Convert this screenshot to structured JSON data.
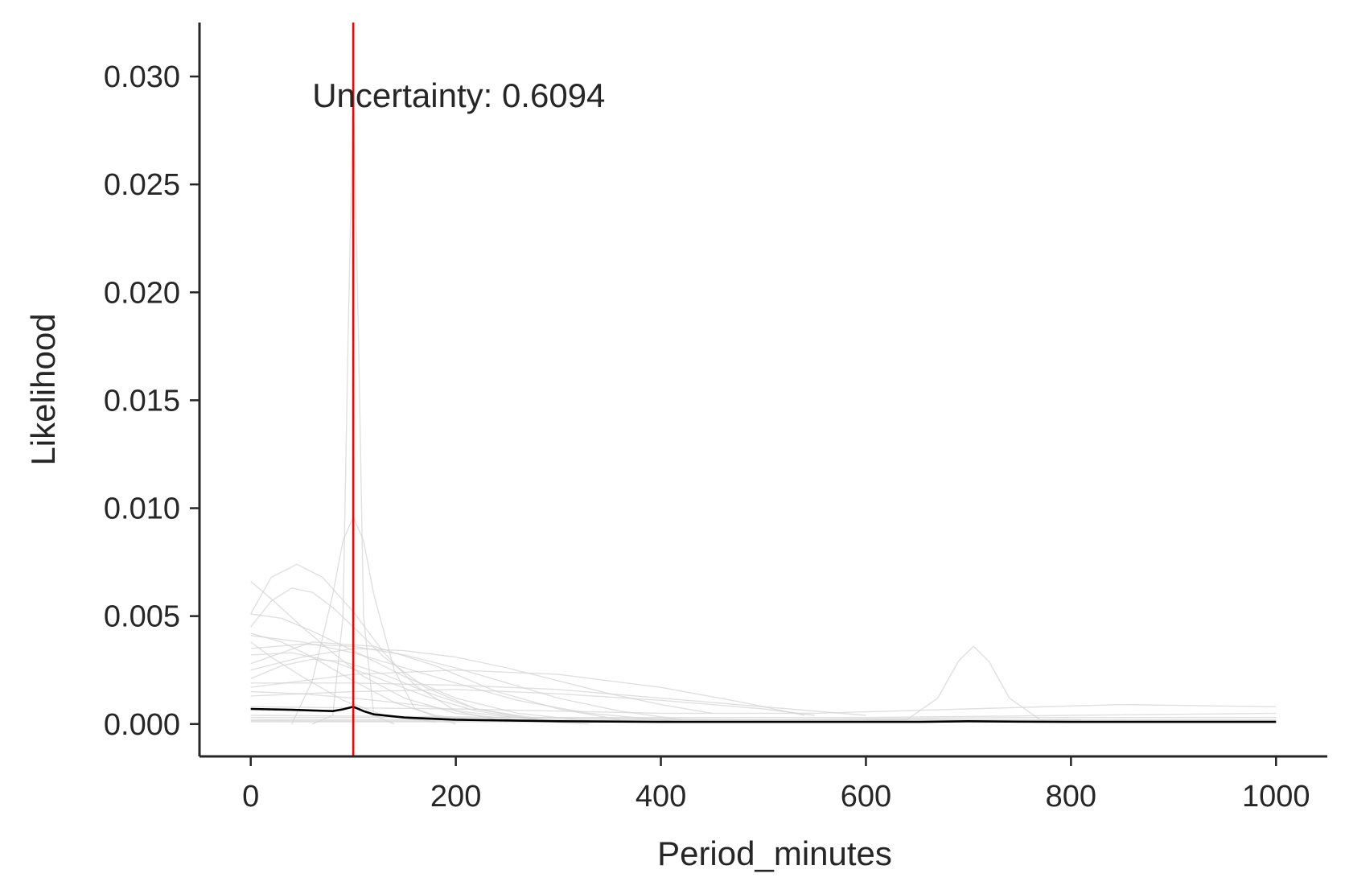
{
  "chart_data": {
    "type": "line",
    "title": "",
    "xlabel": "Period_minutes",
    "ylabel": "Likelihood",
    "xlim": [
      -50,
      1050
    ],
    "ylim": [
      -0.0015,
      0.0325
    ],
    "x_ticks": [
      0,
      200,
      400,
      600,
      800,
      1000
    ],
    "x_tick_labels": [
      "0",
      "200",
      "400",
      "600",
      "800",
      "1000"
    ],
    "y_ticks": [
      0.0,
      0.005,
      0.01,
      0.015,
      0.02,
      0.025,
      0.03
    ],
    "y_tick_labels": [
      "0.000",
      "0.005",
      "0.010",
      "0.015",
      "0.020",
      "0.025",
      "0.030"
    ],
    "grid": false,
    "annotation": {
      "text": "Uncertainty: 0.6094",
      "x": 60,
      "y": 0.0291
    },
    "vline": {
      "x": 100,
      "color": "#ff0000"
    },
    "colors": {
      "individual": "#d3d3d3",
      "mean": "#000000",
      "vline": "#ff0000",
      "axis": "#262626"
    },
    "series": [
      {
        "role": "mean",
        "x": [
          0,
          40,
          80,
          90,
          100,
          110,
          120,
          150,
          200,
          300,
          400,
          500,
          600,
          650,
          700,
          750,
          800,
          900,
          1000
        ],
        "y": [
          0.0007,
          0.00066,
          0.0006,
          0.00068,
          0.0008,
          0.0006,
          0.00045,
          0.0003,
          0.0002,
          0.00013,
          0.0001,
          0.0001,
          0.0001,
          0.0001,
          0.00013,
          0.00011,
          0.0001,
          0.0001,
          0.0001
        ]
      },
      {
        "role": "individual",
        "x": [
          60,
          80,
          90,
          95,
          100,
          105,
          110,
          120,
          140
        ],
        "y": [
          0.0,
          0.0004,
          0.005,
          0.018,
          0.0295,
          0.018,
          0.005,
          0.0004,
          0.0
        ]
      },
      {
        "role": "individual",
        "x": [
          40,
          60,
          80,
          90,
          100,
          110,
          120,
          140,
          160,
          200
        ],
        "y": [
          0.0,
          0.002,
          0.006,
          0.0085,
          0.0096,
          0.0085,
          0.006,
          0.0025,
          0.0007,
          0.0
        ]
      },
      {
        "role": "individual",
        "x": [
          0,
          20,
          45,
          70,
          100,
          130,
          160,
          200,
          250
        ],
        "y": [
          0.0051,
          0.0068,
          0.0074,
          0.0068,
          0.0052,
          0.0033,
          0.0018,
          0.0006,
          0.0001
        ]
      },
      {
        "role": "individual",
        "x": [
          0,
          20,
          40,
          60,
          80,
          100,
          130,
          170,
          220,
          300
        ],
        "y": [
          0.0045,
          0.0057,
          0.0063,
          0.0061,
          0.0054,
          0.0045,
          0.0031,
          0.0017,
          0.0007,
          0.0001
        ]
      },
      {
        "role": "individual",
        "x": [
          0,
          20,
          50,
          80,
          110,
          150,
          200,
          260,
          330
        ],
        "y": [
          0.0066,
          0.0058,
          0.0045,
          0.0033,
          0.0022,
          0.0012,
          0.0005,
          0.0002,
          0.0
        ]
      },
      {
        "role": "individual",
        "x": [
          0,
          30,
          60,
          100,
          150,
          200,
          260,
          340
        ],
        "y": [
          0.0051,
          0.0049,
          0.0043,
          0.0034,
          0.0022,
          0.0012,
          0.0005,
          0.0001
        ]
      },
      {
        "role": "individual",
        "x": [
          0,
          50,
          100,
          150,
          200,
          260,
          330,
          420
        ],
        "y": [
          0.0041,
          0.0038,
          0.0033,
          0.0026,
          0.0019,
          0.0011,
          0.0005,
          0.0001
        ]
      },
      {
        "role": "individual",
        "x": [
          0,
          50,
          100,
          150,
          200,
          250,
          300,
          360,
          420
        ],
        "y": [
          0.0035,
          0.0037,
          0.0036,
          0.0032,
          0.0026,
          0.0019,
          0.0012,
          0.0006,
          0.0002
        ]
      },
      {
        "role": "individual",
        "x": [
          0,
          50,
          100,
          150,
          200,
          250,
          300,
          350,
          400,
          450
        ],
        "y": [
          0.0025,
          0.0031,
          0.0035,
          0.0034,
          0.0031,
          0.0026,
          0.002,
          0.0014,
          0.0009,
          0.0005
        ]
      },
      {
        "role": "individual",
        "x": [
          0,
          100,
          200,
          300,
          400,
          480,
          540
        ],
        "y": [
          0.0017,
          0.0023,
          0.0025,
          0.0023,
          0.0017,
          0.001,
          0.0004
        ]
      },
      {
        "role": "individual",
        "x": [
          0,
          60,
          120,
          180,
          240,
          300,
          360
        ],
        "y": [
          0.0028,
          0.0038,
          0.0036,
          0.0027,
          0.0015,
          0.0007,
          0.0002
        ]
      },
      {
        "role": "individual",
        "x": [
          0,
          100,
          200,
          300,
          400,
          500,
          600
        ],
        "y": [
          0.0019,
          0.0019,
          0.0018,
          0.0016,
          0.0012,
          0.0008,
          0.0004
        ]
      },
      {
        "role": "individual",
        "x": [
          0,
          100,
          200,
          300,
          400,
          500,
          550
        ],
        "y": [
          0.0013,
          0.0015,
          0.0016,
          0.0014,
          0.0011,
          0.0007,
          0.0004
        ]
      },
      {
        "role": "individual",
        "x": [
          0,
          30,
          60,
          100,
          140,
          180,
          230
        ],
        "y": [
          0.0042,
          0.0038,
          0.0031,
          0.002,
          0.001,
          0.0004,
          0.0001
        ]
      },
      {
        "role": "individual",
        "x": [
          0,
          20,
          50,
          90,
          130,
          180
        ],
        "y": [
          0.0038,
          0.0031,
          0.0022,
          0.0011,
          0.0004,
          0.0001
        ]
      },
      {
        "role": "individual",
        "x": [
          0,
          40,
          80,
          120,
          170,
          220,
          280
        ],
        "y": [
          0.0032,
          0.0033,
          0.0029,
          0.0022,
          0.0013,
          0.0006,
          0.0002
        ]
      },
      {
        "role": "individual",
        "x": [
          0,
          30,
          60,
          90,
          130,
          170,
          220,
          280
        ],
        "y": [
          0.0021,
          0.0027,
          0.003,
          0.0029,
          0.0023,
          0.0015,
          0.0007,
          0.0002
        ]
      },
      {
        "role": "individual",
        "x": [
          0,
          50,
          100,
          160,
          220,
          280
        ],
        "y": [
          0.0015,
          0.0014,
          0.0012,
          0.0009,
          0.0005,
          0.0002
        ]
      },
      {
        "role": "individual",
        "x": [
          600,
          640,
          670,
          690,
          705,
          720,
          740,
          770,
          810
        ],
        "y": [
          0.0002,
          0.0002,
          0.0012,
          0.0029,
          0.0036,
          0.0029,
          0.0012,
          0.0002,
          0.0002
        ]
      },
      {
        "role": "individual",
        "x": [
          0,
          200,
          400,
          550,
          700,
          850,
          1000
        ],
        "y": [
          0.0008,
          0.0007,
          0.0005,
          0.0005,
          0.0007,
          0.0009,
          0.0008
        ]
      },
      {
        "role": "individual",
        "x": [
          0,
          300,
          600,
          800,
          1000
        ],
        "y": [
          0.0004,
          0.0003,
          0.0003,
          0.0004,
          0.0005
        ]
      },
      {
        "role": "individual",
        "x": [
          0,
          250,
          500,
          750,
          1000
        ],
        "y": [
          0.0003,
          0.0003,
          0.0002,
          0.0003,
          0.0003
        ]
      },
      {
        "role": "individual",
        "x": [
          0,
          1000
        ],
        "y": [
          0.0001,
          0.0001
        ]
      },
      {
        "role": "individual",
        "x": [
          0,
          500,
          1000
        ],
        "y": [
          0.00015,
          0.00012,
          0.00014
        ]
      },
      {
        "role": "individual",
        "x": [
          0,
          1000
        ],
        "y": [
          0.0002,
          0.0002
        ]
      }
    ]
  }
}
